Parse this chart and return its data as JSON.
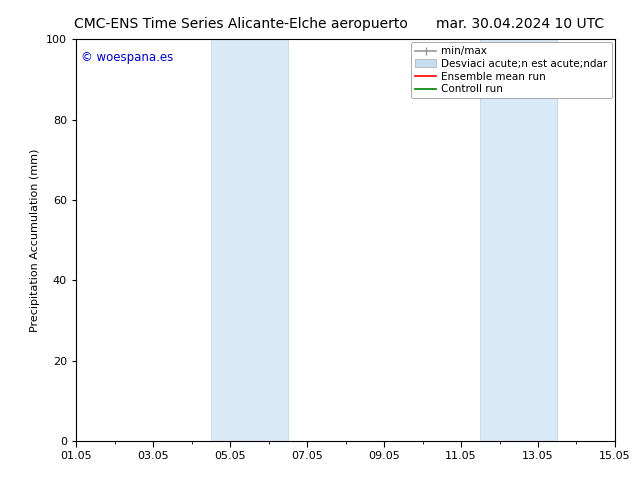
{
  "title_left": "CMC-ENS Time Series Alicante-Elche aeropuerto",
  "title_right": "mar. 30.04.2024 10 UTC",
  "ylabel": "Precipitation Accumulation (mm)",
  "ylim": [
    0,
    100
  ],
  "yticks": [
    0,
    20,
    40,
    60,
    80,
    100
  ],
  "xtick_labels": [
    "01.05",
    "03.05",
    "05.05",
    "07.05",
    "09.05",
    "11.05",
    "13.05",
    "15.05"
  ],
  "xtick_positions": [
    0,
    2,
    4,
    6,
    8,
    10,
    12,
    14
  ],
  "xlim": [
    0,
    14
  ],
  "shaded_bands": [
    {
      "x_start": 3.5,
      "x_end": 5.5
    },
    {
      "x_start": 10.5,
      "x_end": 12.5
    }
  ],
  "band_color": "#daeaf7",
  "band_edge_color": "#b8d4ea",
  "watermark_text": "© woespana.es",
  "watermark_color": "#0000cc",
  "legend_label_minmax": "min/max",
  "legend_label_std": "Desviaci acute;n est acute;ndar",
  "legend_label_ensemble": "Ensemble mean run",
  "legend_label_control": "Controll run",
  "legend_color_minmax": "#999999",
  "legend_color_std": "#c8ddef",
  "legend_color_ensemble": "#ff0000",
  "legend_color_control": "#008000",
  "background_color": "#ffffff",
  "title_fontsize": 10,
  "axis_fontsize": 8,
  "tick_fontsize": 8,
  "legend_fontsize": 7.5
}
